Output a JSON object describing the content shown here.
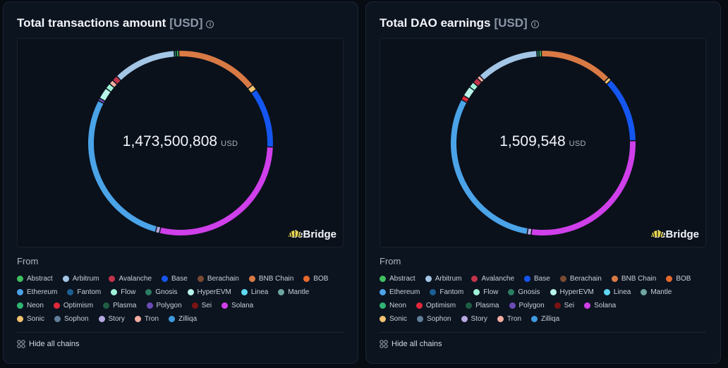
{
  "brand": {
    "name": "deBridge"
  },
  "legend_from_label": "From",
  "hide_chains_label": "Hide all chains",
  "chains": [
    {
      "name": "Abstract",
      "color": "#3fbf5f"
    },
    {
      "name": "Arbitrum",
      "color": "#a3c6e6"
    },
    {
      "name": "Avalanche",
      "color": "#c2334a"
    },
    {
      "name": "Base",
      "color": "#1556f0"
    },
    {
      "name": "Berachain",
      "color": "#7a4a32"
    },
    {
      "name": "BNB Chain",
      "color": "#d97a45"
    },
    {
      "name": "BOB",
      "color": "#e46a2c"
    },
    {
      "name": "Ethereum",
      "color": "#4ba3e8"
    },
    {
      "name": "Fantom",
      "color": "#1c5f92"
    },
    {
      "name": "Flow",
      "color": "#9ff2d8"
    },
    {
      "name": "Gnosis",
      "color": "#2a7d60"
    },
    {
      "name": "HyperEVM",
      "color": "#b8f5e8"
    },
    {
      "name": "Linea",
      "color": "#5fd8f2"
    },
    {
      "name": "Mantle",
      "color": "#6fa6a2"
    },
    {
      "name": "Neon",
      "color": "#2fb572"
    },
    {
      "name": "Optimism",
      "color": "#e0283a"
    },
    {
      "name": "Plasma",
      "color": "#1f5e42"
    },
    {
      "name": "Polygon",
      "color": "#6b4bb5"
    },
    {
      "name": "Sei",
      "color": "#7a1414"
    },
    {
      "name": "Solana",
      "color": "#cf3fea"
    },
    {
      "name": "Sonic",
      "color": "#f2c270"
    },
    {
      "name": "Sophon",
      "color": "#5f7f9a"
    },
    {
      "name": "Story",
      "color": "#b7a8e0"
    },
    {
      "name": "Tron",
      "color": "#f2ada0"
    },
    {
      "name": "Zilliqa",
      "color": "#3f9ae0"
    }
  ],
  "chart_data": [
    {
      "type": "pie",
      "title": "Total transactions amount",
      "title_unit": "[USD]",
      "center_value": "1,473,500,808",
      "center_unit": "USD",
      "series": [
        {
          "name": "Abstract",
          "value": 0.4
        },
        {
          "name": "BNB Chain",
          "value": 14.5
        },
        {
          "name": "Sonic",
          "value": 1.0
        },
        {
          "name": "Base",
          "value": 10.5
        },
        {
          "name": "Solana",
          "value": 28.0
        },
        {
          "name": "Story",
          "value": 0.7
        },
        {
          "name": "Ethereum",
          "value": 28.2
        },
        {
          "name": "Polygon",
          "value": 0.5
        },
        {
          "name": "HyperEVM",
          "value": 2.0
        },
        {
          "name": "Flow",
          "value": 1.0
        },
        {
          "name": "Tron",
          "value": 0.8
        },
        {
          "name": "Avalanche",
          "value": 1.0
        },
        {
          "name": "Arbitrum",
          "value": 11.0
        },
        {
          "name": "Gnosis",
          "value": 0.4
        }
      ]
    },
    {
      "type": "pie",
      "title": "Total DAO earnings",
      "title_unit": "[USD]",
      "center_value": "1,509,548",
      "center_unit": "USD",
      "series": [
        {
          "name": "Abstract",
          "value": 0.4
        },
        {
          "name": "BNB Chain",
          "value": 12.8
        },
        {
          "name": "Sonic",
          "value": 0.6
        },
        {
          "name": "Base",
          "value": 11.5
        },
        {
          "name": "Solana",
          "value": 27.5
        },
        {
          "name": "Story",
          "value": 0.7
        },
        {
          "name": "Ethereum",
          "value": 30.0
        },
        {
          "name": "Optimism",
          "value": 0.8
        },
        {
          "name": "HyperEVM",
          "value": 1.8
        },
        {
          "name": "Flow",
          "value": 1.0
        },
        {
          "name": "Avalanche",
          "value": 1.0
        },
        {
          "name": "Tron",
          "value": 0.6
        },
        {
          "name": "Arbitrum",
          "value": 10.9
        },
        {
          "name": "Gnosis",
          "value": 0.4
        }
      ]
    }
  ]
}
